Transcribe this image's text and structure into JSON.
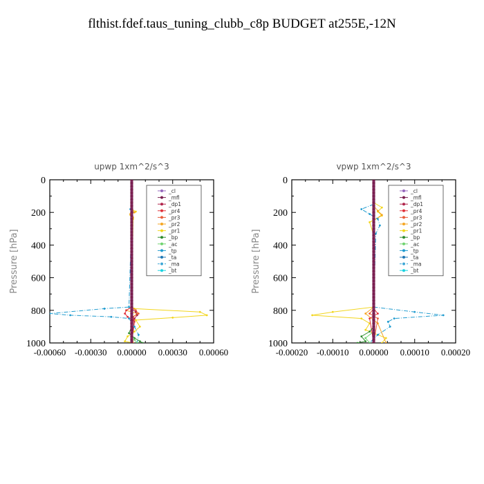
{
  "figure_title": "flthist.fdef.taus_tuning_clubb_c8p  BUDGET at255E,-12N",
  "legend_entries": [
    {
      "name": "_cl",
      "color": "#9467bd",
      "marker": "diamond"
    },
    {
      "name": "_mfl",
      "color": "#7a1f4f",
      "marker": "diamond"
    },
    {
      "name": "_dp1",
      "color": "#b0234a",
      "marker": "circle"
    },
    {
      "name": "_pr4",
      "color": "#e0303a",
      "marker": "circle"
    },
    {
      "name": "_pr3",
      "color": "#e85c3a",
      "marker": "triangle"
    },
    {
      "name": "_pr2",
      "color": "#f5a623",
      "marker": "triangle"
    },
    {
      "name": "_pr1",
      "color": "#f2d51c",
      "marker": "circle"
    },
    {
      "name": "_bp",
      "color": "#2e8b2e",
      "marker": "plus"
    },
    {
      "name": "_ac",
      "color": "#6fd36f",
      "marker": "diamond"
    },
    {
      "name": "_tp",
      "color": "#1f9bcf",
      "marker": "x"
    },
    {
      "name": "_ta",
      "color": "#1f77b4",
      "marker": "arrow"
    },
    {
      "name": "_ma",
      "color": "#3fa7d6",
      "marker": "dash"
    },
    {
      "name": "_bt",
      "color": "#19d3e0",
      "marker": "diamond"
    }
  ],
  "chart_data": [
    {
      "type": "line",
      "title": "upwp   1xm^2/s^3",
      "ylabel": "Pressure [hPa]",
      "xlim": [
        -0.0006,
        0.0006
      ],
      "ylim": [
        1000,
        0
      ],
      "xticks": [
        "-0.00060",
        "-0.00030",
        "0.00000",
        "0.00030",
        "0.00060"
      ],
      "xtick_values": [
        -0.0006,
        -0.0003,
        0,
        0.0003,
        0.0006
      ],
      "yticks": [
        0,
        200,
        400,
        600,
        800,
        1000
      ],
      "series": [
        {
          "name": "_pr1",
          "x": [
            0,
            0,
            3e-05,
            -1e-05,
            1e-05,
            0,
            2e-05,
            0.0005,
            0.00055,
            0.0003,
            3e-05,
            6e-05,
            2e-05,
            -3e-05,
            -5e-05,
            1e-05
          ],
          "y": [
            150,
            180,
            195,
            215,
            240,
            780,
            790,
            810,
            830,
            845,
            860,
            900,
            930,
            960,
            990,
            1000
          ]
        },
        {
          "name": "_pr2",
          "x": [
            0,
            2e-05,
            -1e-05,
            1e-05,
            0,
            0,
            -4e-05,
            4e-05,
            1e-05,
            0,
            1e-05
          ],
          "y": [
            180,
            200,
            210,
            230,
            250,
            780,
            800,
            820,
            840,
            900,
            1000
          ]
        },
        {
          "name": "_pr3",
          "x": [
            0,
            3e-05,
            5e-05,
            1e-05,
            2e-05,
            0
          ],
          "y": [
            780,
            800,
            820,
            840,
            870,
            1000
          ]
        },
        {
          "name": "_pr4",
          "x": [
            0,
            -4e-05,
            -5e-05,
            -3e-05,
            1e-05,
            0
          ],
          "y": [
            780,
            800,
            820,
            840,
            860,
            1000
          ]
        },
        {
          "name": "_dp1",
          "x": [
            0,
            3e-05,
            4e-05,
            2e-05,
            0
          ],
          "y": [
            790,
            810,
            830,
            850,
            1000
          ]
        },
        {
          "name": "_tp",
          "x": [
            -1e-05,
            5e-06,
            0,
            -2e-05,
            -0.0002,
            -0.0006,
            -0.00045,
            -0.00015,
            -2e-05,
            2e-05,
            5e-05,
            4e-05
          ],
          "y": [
            180,
            200,
            220,
            780,
            790,
            820,
            830,
            840,
            850,
            900,
            950,
            1000
          ]
        },
        {
          "name": "_bp",
          "x": [
            0,
            0,
            -2e-05,
            2e-05,
            6e-05,
            8e-05
          ],
          "y": [
            0,
            900,
            940,
            970,
            990,
            1000
          ]
        },
        {
          "name": "_ac",
          "x": [
            0,
            0,
            2e-05,
            4e-05
          ],
          "y": [
            0,
            950,
            980,
            1000
          ]
        },
        {
          "name": "_ta",
          "x": [
            0,
            0
          ],
          "y": [
            0,
            1000
          ]
        },
        {
          "name": "_mfl",
          "x": [
            0,
            0
          ],
          "y": [
            0,
            1000
          ]
        },
        {
          "name": "_cl",
          "x": [
            0,
            0
          ],
          "y": [
            0,
            1000
          ]
        }
      ]
    },
    {
      "type": "line",
      "title": "vpwp   1xm^2/s^3",
      "ylabel": "Pressure [hPa]",
      "xlim": [
        -0.0002,
        0.0002
      ],
      "ylim": [
        1000,
        0
      ],
      "xticks": [
        "-0.00020",
        "-0.00010",
        "0.00000",
        "0.00010",
        "0.00020"
      ],
      "xtick_values": [
        -0.0002,
        -0.0001,
        0,
        0.0001,
        0.0002
      ],
      "yticks": [
        0,
        200,
        400,
        600,
        800,
        1000
      ],
      "series": [
        {
          "name": "_pr1",
          "x": [
            0,
            2e-05,
            1e-05,
            2e-05,
            -1e-05,
            0,
            0,
            -0.0001,
            -0.00015,
            -3e-05,
            -1e-05,
            -2e-05,
            3e-05,
            2e-05
          ],
          "y": [
            140,
            170,
            195,
            220,
            260,
            340,
            780,
            810,
            830,
            850,
            880,
            920,
            970,
            1000
          ]
        },
        {
          "name": "_pr2",
          "x": [
            0,
            1e-05,
            2e-05,
            0,
            0,
            -2e-05,
            1e-05,
            3e-05
          ],
          "y": [
            160,
            190,
            215,
            250,
            780,
            820,
            880,
            1000
          ]
        },
        {
          "name": "_pr3",
          "x": [
            0,
            -1e-05,
            1e-05,
            0
          ],
          "y": [
            790,
            820,
            850,
            1000
          ]
        },
        {
          "name": "_pr4",
          "x": [
            0,
            1e-05,
            -1e-05,
            0
          ],
          "y": [
            790,
            820,
            850,
            1000
          ]
        },
        {
          "name": "_tp",
          "x": [
            0,
            -3e-05,
            -1e-05,
            1e-05,
            1.5e-05,
            5e-06,
            0,
            0.0001,
            0.00017,
            5e-05,
            3.5e-05,
            4e-05,
            1e-05,
            -1e-05
          ],
          "y": [
            150,
            180,
            210,
            240,
            280,
            330,
            780,
            810,
            830,
            850,
            870,
            900,
            950,
            1000
          ]
        },
        {
          "name": "_bp",
          "x": [
            0,
            0,
            -1e-05,
            -3e-05,
            -2e-05,
            -4e-05
          ],
          "y": [
            0,
            900,
            930,
            960,
            990,
            1000
          ]
        },
        {
          "name": "_ac",
          "x": [
            0,
            0,
            -2e-05,
            -1e-05
          ],
          "y": [
            0,
            930,
            970,
            1000
          ]
        },
        {
          "name": "_ta",
          "x": [
            0,
            0
          ],
          "y": [
            0,
            1000
          ]
        },
        {
          "name": "_mfl",
          "x": [
            0,
            0
          ],
          "y": [
            0,
            1000
          ]
        },
        {
          "name": "_cl",
          "x": [
            0,
            0
          ],
          "y": [
            0,
            1000
          ]
        }
      ]
    }
  ]
}
